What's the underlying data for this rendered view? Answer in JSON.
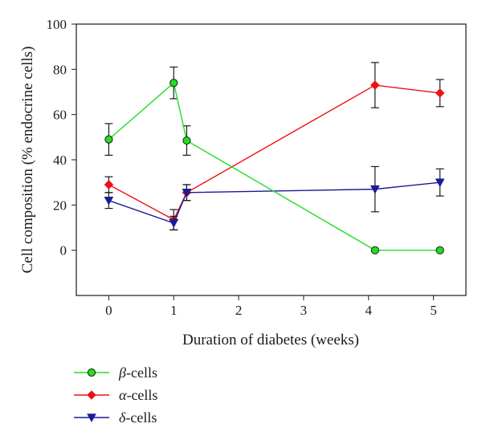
{
  "chart_data": {
    "type": "line",
    "title": "",
    "xlabel": "Duration of diabetes (weeks)",
    "ylabel": "Cell composition (% endocrine cells)",
    "xlim": [
      -0.5,
      5.5
    ],
    "ylim": [
      -20,
      100
    ],
    "x_ticks": [
      "0",
      "1",
      "2",
      "3",
      "4",
      "5"
    ],
    "y_ticks": [
      "0",
      "20",
      "40",
      "60",
      "80",
      "100"
    ],
    "grid": false,
    "legend_position": "below",
    "series": [
      {
        "name": "β-cells",
        "greek": "β",
        "suffix": "-cells",
        "color": "#22dd22",
        "marker": "circle",
        "points": [
          {
            "x": 0,
            "y": 49,
            "err": 7
          },
          {
            "x": 1,
            "y": 74,
            "err": 7
          },
          {
            "x": 1.2,
            "y": 48.5,
            "err": 6.5
          },
          {
            "x": 4.1,
            "y": 0,
            "err": 0
          },
          {
            "x": 5.1,
            "y": 0,
            "err": 0
          }
        ]
      },
      {
        "name": "α-cells",
        "greek": "α",
        "suffix": "-cells",
        "color": "#ee1111",
        "marker": "diamond",
        "points": [
          {
            "x": 0,
            "y": 29,
            "err": 3.5
          },
          {
            "x": 1,
            "y": 13.5,
            "err": 4.5
          },
          {
            "x": 1.2,
            "y": 25.5,
            "err": 3.5
          },
          {
            "x": 4.1,
            "y": 73,
            "err": 10
          },
          {
            "x": 5.1,
            "y": 69.5,
            "err": 6
          }
        ]
      },
      {
        "name": "δ-cells",
        "greek": "δ",
        "suffix": "-cells",
        "color": "#1a1a99",
        "marker": "triangle-down",
        "points": [
          {
            "x": 0,
            "y": 22,
            "err": 3.5
          },
          {
            "x": 1,
            "y": 12,
            "err": 3
          },
          {
            "x": 1.2,
            "y": 25.5,
            "err": 3.5
          },
          {
            "x": 4.1,
            "y": 27,
            "err": 10
          },
          {
            "x": 5.1,
            "y": 30,
            "err": 6
          }
        ]
      }
    ]
  }
}
